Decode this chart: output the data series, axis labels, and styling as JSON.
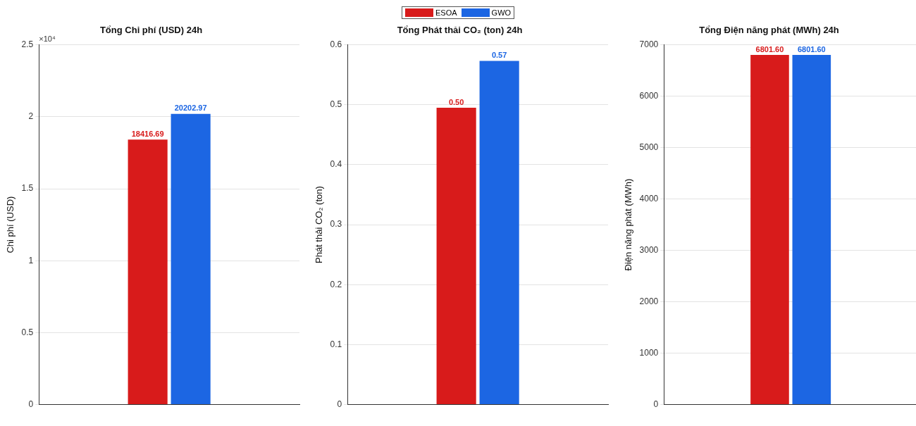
{
  "chart_data": [
    {
      "type": "bar",
      "title": "Tổng Chi phí (USD) 24h",
      "ylabel": "Chi phí (USD)",
      "categories": [
        null
      ],
      "series": [
        {
          "color": "#d81b1b",
          "values": [
            1.8417
          ]
        },
        {
          "color": "#1c66e3",
          "values": [
            2.0203
          ]
        }
      ],
      "ylim": [
        0,
        2.5
      ],
      "yticks": [
        0,
        0.5,
        1,
        1.5,
        2,
        2.5
      ],
      "annotations": [
        "×10⁴",
        {
          "text": "18416.69",
          "y": 1.8417
        },
        {
          "text": "20202.97",
          "y": 2.0203
        }
      ],
      "grid": "y"
    },
    {
      "type": "bar",
      "title": "Tổng Phát thải CO₂ (ton) 24h",
      "ylabel": "Phát thải CO₂ (ton)",
      "categories": [
        null
      ],
      "series": [
        {
          "name": "ESOA",
          "color": "#d81b1b",
          "values": [
            0.495
          ],
          "value_labels": [
            "0.50"
          ]
        },
        {
          "name": "GWO",
          "color": "#1c66e3",
          "values": [
            0.573
          ],
          "value_labels": [
            "0.57"
          ]
        }
      ],
      "ylim": [
        0,
        0.6
      ],
      "yticks": [
        0,
        0.1,
        0.2,
        0.3,
        0.4,
        0.5,
        0.6
      ],
      "grid": "y",
      "legend": "top"
    },
    {
      "type": "bar",
      "title": "Tổng Điện năng phát (MWh) 24h",
      "ylabel": "Điện năng phát (MWh)",
      "categories": [
        null
      ],
      "series": [
        {
          "color": "#d81b1b",
          "values": [
            6801.6
          ],
          "value_labels": [
            "6801.60"
          ]
        },
        {
          "color": "#1c66e3",
          "values": [
            6801.6
          ],
          "value_labels": [
            "6801.60"
          ]
        }
      ],
      "ylim": [
        0,
        7000
      ],
      "yticks": [
        0,
        1000,
        2000,
        3000,
        4000,
        5000,
        6000,
        7000
      ],
      "grid": "y"
    }
  ]
}
